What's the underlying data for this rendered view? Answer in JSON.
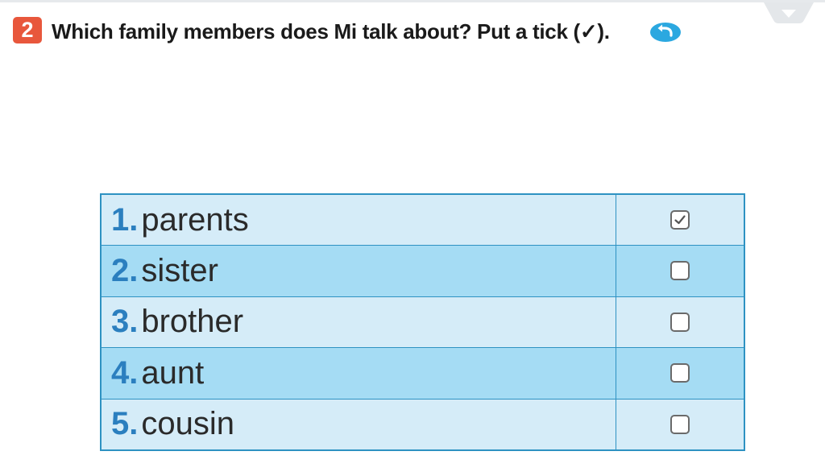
{
  "exercise": {
    "number": "2",
    "instruction": "Which family members does Mi talk about? Put a tick (✓).",
    "audio_icon": "audio-replay-icon",
    "corner_tab_icon": "page-tab-icon"
  },
  "table": {
    "rows": [
      {
        "number": "1.",
        "label": "parents",
        "checked": true
      },
      {
        "number": "2.",
        "label": "sister",
        "checked": false
      },
      {
        "number": "3.",
        "label": "brother",
        "checked": false
      },
      {
        "number": "4.",
        "label": "aunt",
        "checked": false
      },
      {
        "number": "5.",
        "label": "cousin",
        "checked": false
      }
    ]
  },
  "colors": {
    "badge": "#e8573c",
    "number_text": "#2b7fbf",
    "row_light": "#d5ecf8",
    "row_dark": "#a5dcf4",
    "border": "#2e92c2",
    "audio_icon": "#2ba8e0"
  }
}
